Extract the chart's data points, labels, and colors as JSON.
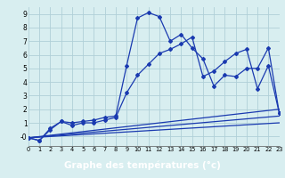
{
  "title": "",
  "xlabel": "Graphe des températures (°c)",
  "ylabel": "",
  "bg_color": "#d8eef0",
  "grid_color": "#b0d0d8",
  "line_color": "#1a3ab0",
  "xlabel_bg": "#2244bb",
  "xlabel_fg": "#ffffff",
  "xmin": 0,
  "xmax": 23,
  "ymin": -0.7,
  "ymax": 9.5,
  "lines": [
    {
      "x": [
        0,
        1,
        2,
        3,
        4,
        5,
        6,
        7,
        8,
        9,
        10,
        11,
        12,
        13,
        14,
        15,
        16,
        17,
        18,
        19,
        20,
        21,
        22,
        23
      ],
      "y": [
        -0.1,
        -0.3,
        0.6,
        1.1,
        1.0,
        1.1,
        1.2,
        1.4,
        1.5,
        5.2,
        8.7,
        9.1,
        8.8,
        7.0,
        7.5,
        6.5,
        5.7,
        3.7,
        4.5,
        4.4,
        5.0,
        5.0,
        6.5,
        1.7
      ],
      "marker": "D",
      "markersize": 2.0,
      "lw": 0.9
    },
    {
      "x": [
        0,
        1,
        2,
        3,
        4,
        5,
        6,
        7,
        8,
        9,
        10,
        11,
        12,
        13,
        14,
        15,
        16,
        17,
        18,
        19,
        20,
        21,
        22,
        23
      ],
      "y": [
        -0.1,
        -0.3,
        0.5,
        1.1,
        0.8,
        1.0,
        1.0,
        1.2,
        1.4,
        3.2,
        4.5,
        5.3,
        6.1,
        6.4,
        6.8,
        7.3,
        4.4,
        4.8,
        5.5,
        6.1,
        6.4,
        3.5,
        5.2,
        1.7
      ],
      "marker": "D",
      "markersize": 2.0,
      "lw": 0.9
    },
    {
      "x": [
        0,
        23
      ],
      "y": [
        -0.1,
        2.0
      ],
      "marker": null,
      "lw": 0.9
    },
    {
      "x": [
        0,
        23
      ],
      "y": [
        -0.1,
        1.5
      ],
      "marker": null,
      "lw": 0.9
    },
    {
      "x": [
        0,
        23
      ],
      "y": [
        -0.1,
        1.0
      ],
      "marker": null,
      "lw": 0.9
    }
  ],
  "xticks": [
    0,
    1,
    2,
    3,
    4,
    5,
    6,
    7,
    8,
    9,
    10,
    11,
    12,
    13,
    14,
    15,
    16,
    17,
    18,
    19,
    20,
    21,
    22,
    23
  ],
  "yticks": [
    0,
    1,
    2,
    3,
    4,
    5,
    6,
    7,
    8,
    9
  ],
  "ytick_labels": [
    "-0",
    "1",
    "2",
    "3",
    "4",
    "5",
    "6",
    "7",
    "8",
    "9"
  ]
}
